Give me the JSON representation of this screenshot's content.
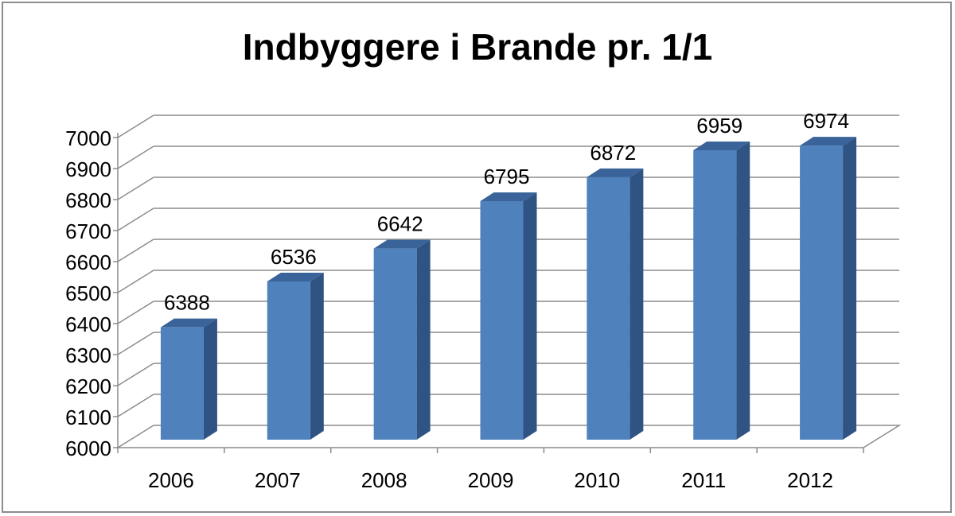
{
  "chart_data": {
    "type": "bar",
    "title": "Indbyggere i Brande pr. 1/1",
    "categories": [
      "2006",
      "2007",
      "2008",
      "2009",
      "2010",
      "2011",
      "2012"
    ],
    "values": [
      6388,
      6536,
      6642,
      6795,
      6872,
      6959,
      6974
    ],
    "ylim": [
      6000,
      7000
    ],
    "yticks": [
      6000,
      6100,
      6200,
      6300,
      6400,
      6500,
      6600,
      6700,
      6800,
      6900,
      7000
    ],
    "grid": true,
    "style": "3d-column",
    "colors": {
      "bar_front": "#4f81bd",
      "bar_side": "#2f5383",
      "bar_top": "#3a6499",
      "grid": "#8c8c8c"
    }
  }
}
